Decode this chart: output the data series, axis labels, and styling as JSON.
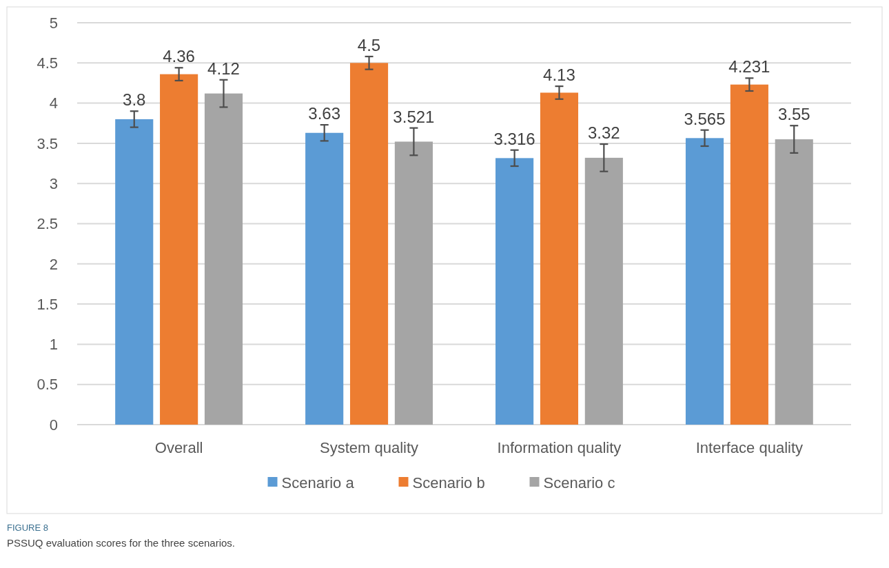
{
  "chart_data": {
    "type": "bar",
    "categories": [
      "Overall",
      "System quality",
      "Information quality",
      "Interface quality"
    ],
    "series": [
      {
        "name": "Scenario a",
        "color": "#5b9bd5",
        "values": [
          3.8,
          3.63,
          3.316,
          3.565
        ],
        "errors": [
          0.1,
          0.1,
          0.1,
          0.1
        ]
      },
      {
        "name": "Scenario b",
        "color": "#ed7d31",
        "values": [
          4.36,
          4.5,
          4.13,
          4.231
        ],
        "errors": [
          0.08,
          0.08,
          0.08,
          0.08
        ]
      },
      {
        "name": "Scenario c",
        "color": "#a5a5a5",
        "values": [
          4.12,
          3.521,
          3.32,
          3.55
        ],
        "errors": [
          0.17,
          0.17,
          0.17,
          0.17
        ]
      }
    ],
    "ylim": [
      0,
      5
    ],
    "yticks": [
      0,
      0.5,
      1,
      1.5,
      2,
      2.5,
      3,
      3.5,
      4,
      4.5,
      5
    ],
    "grid": "y",
    "legend": "bottom",
    "data_labels": true,
    "annotations": [
      "FIGURE 8",
      "PSSUQ evaluation scores for the three scenarios."
    ]
  }
}
